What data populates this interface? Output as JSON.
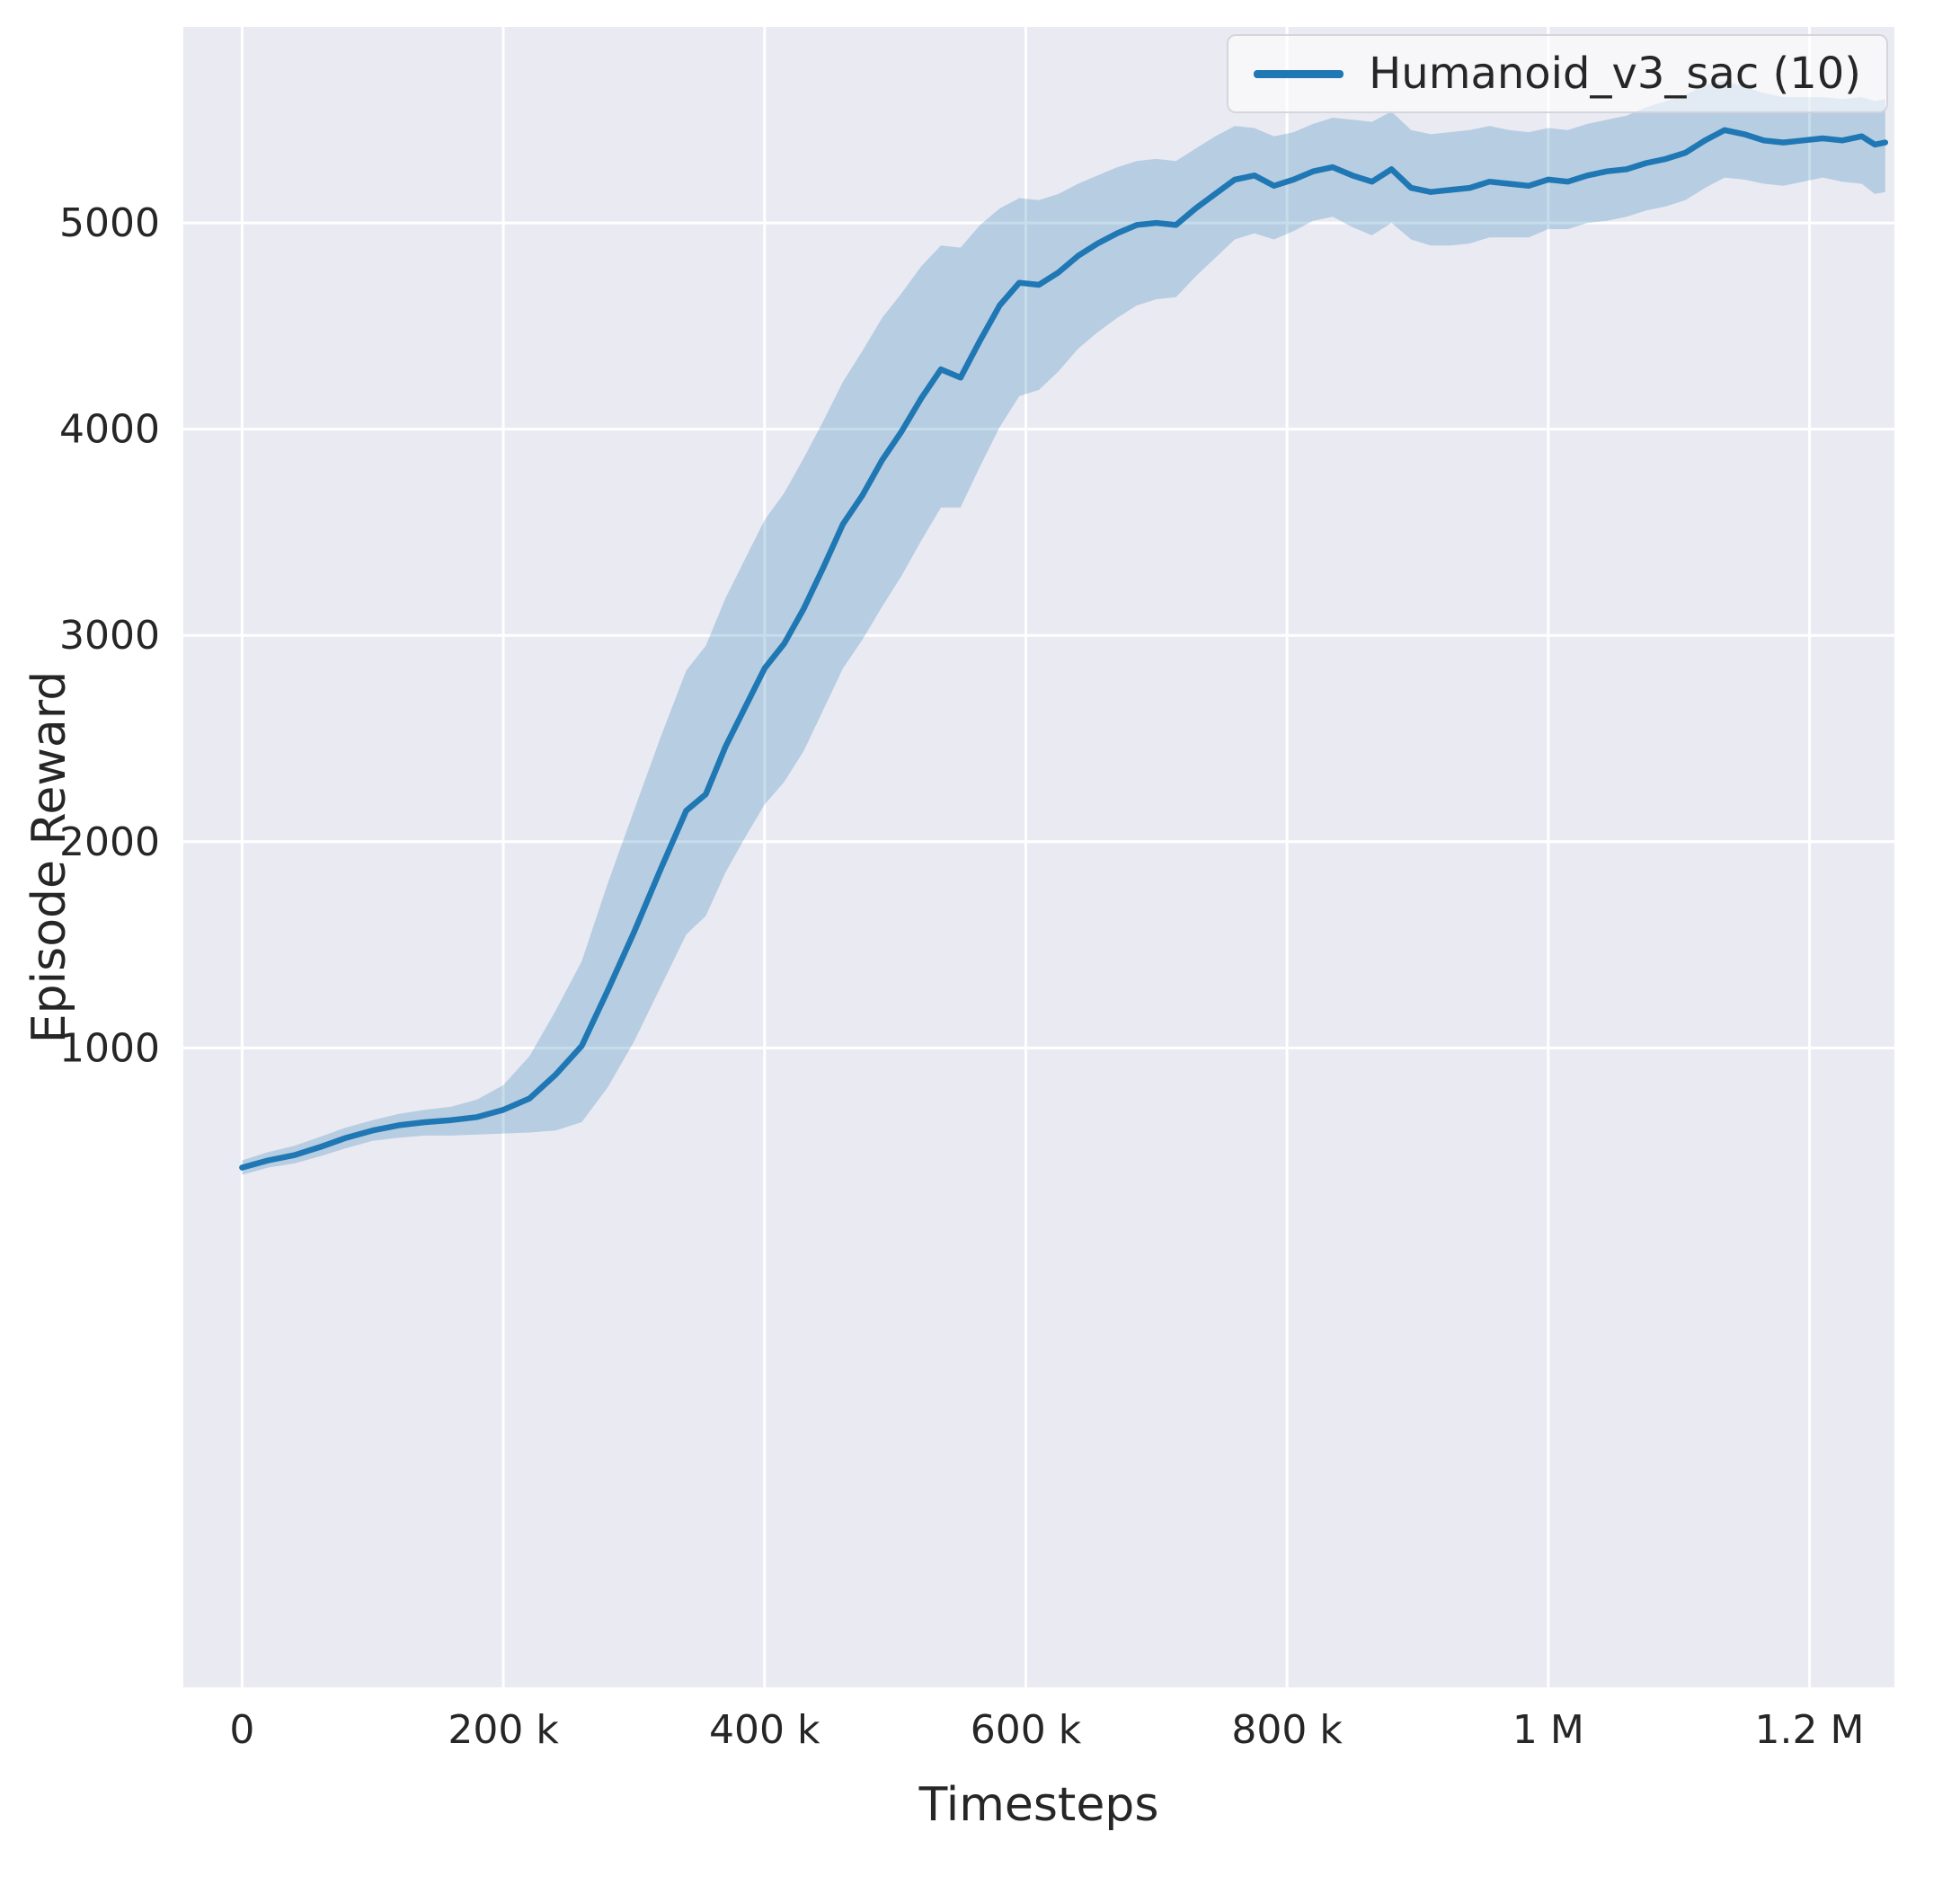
{
  "chart_data": {
    "type": "line",
    "title": "",
    "xlabel": "Timesteps",
    "ylabel": "Episode Reward",
    "grid": true,
    "legend_position": "upper right",
    "legend": [
      {
        "label": "Humanoid_v3_sac (10)",
        "color": "#1f77b4"
      }
    ],
    "xlim": [
      -45000,
      1265000
    ],
    "ylim": [
      -2100,
      5950
    ],
    "xticks": {
      "values": [
        0,
        200000,
        400000,
        600000,
        800000,
        1000000,
        1200000
      ],
      "labels": [
        "0",
        "200 k",
        "400 k",
        "600 k",
        "800 k",
        "1 M",
        "1.2 M"
      ]
    },
    "yticks": {
      "values": [
        1000,
        2000,
        3000,
        4000,
        5000
      ],
      "labels": [
        "1000",
        "2000",
        "3000",
        "4000",
        "5000"
      ]
    },
    "colors": {
      "line": "#1f77b4",
      "band": "#1f77b4",
      "band_opacity": 0.25,
      "plot_bg": "#eaeaf2",
      "grid": "#ffffff",
      "text": "#262626",
      "fig_bg": "#ffffff"
    },
    "series": [
      {
        "name": "Humanoid_v3_sac (10)",
        "x": [
          0,
          20000,
          40000,
          60000,
          80000,
          100000,
          120000,
          140000,
          160000,
          180000,
          200000,
          220000,
          240000,
          260000,
          280000,
          300000,
          320000,
          340000,
          355000,
          370000,
          385000,
          400000,
          415000,
          430000,
          445000,
          460000,
          475000,
          490000,
          505000,
          520000,
          535000,
          550000,
          565000,
          580000,
          595000,
          610000,
          625000,
          640000,
          655000,
          670000,
          685000,
          700000,
          715000,
          730000,
          745000,
          760000,
          775000,
          790000,
          805000,
          820000,
          835000,
          850000,
          865000,
          880000,
          895000,
          910000,
          925000,
          940000,
          955000,
          970000,
          985000,
          1000000,
          1015000,
          1030000,
          1045000,
          1060000,
          1075000,
          1090000,
          1105000,
          1120000,
          1135000,
          1150000,
          1165000,
          1180000,
          1195000,
          1210000,
          1225000,
          1240000,
          1250000,
          1258000
        ],
        "mean": [
          420,
          455,
          480,
          520,
          565,
          600,
          625,
          640,
          650,
          665,
          700,
          755,
          870,
          1010,
          1280,
          1560,
          1860,
          2150,
          2230,
          2460,
          2650,
          2840,
          2960,
          3130,
          3330,
          3540,
          3680,
          3850,
          3990,
          4150,
          4290,
          4250,
          4430,
          4600,
          4710,
          4700,
          4760,
          4840,
          4900,
          4950,
          4990,
          5000,
          4990,
          5070,
          5140,
          5210,
          5230,
          5180,
          5210,
          5250,
          5270,
          5230,
          5200,
          5260,
          5170,
          5150,
          5160,
          5170,
          5200,
          5190,
          5180,
          5210,
          5200,
          5230,
          5250,
          5260,
          5290,
          5310,
          5340,
          5400,
          5450,
          5430,
          5400,
          5390,
          5400,
          5410,
          5400,
          5420,
          5380,
          5390
        ],
        "lower": [
          385,
          420,
          440,
          475,
          515,
          550,
          565,
          575,
          575,
          580,
          585,
          590,
          600,
          640,
          810,
          1030,
          1290,
          1550,
          1640,
          1850,
          2020,
          2180,
          2290,
          2440,
          2640,
          2840,
          2980,
          3140,
          3290,
          3460,
          3620,
          3620,
          3820,
          4010,
          4160,
          4190,
          4280,
          4390,
          4470,
          4540,
          4600,
          4630,
          4640,
          4740,
          4830,
          4920,
          4950,
          4920,
          4960,
          5010,
          5030,
          4980,
          4940,
          5000,
          4920,
          4890,
          4890,
          4900,
          4930,
          4930,
          4930,
          4970,
          4970,
          5000,
          5010,
          5030,
          5060,
          5080,
          5110,
          5170,
          5220,
          5210,
          5190,
          5180,
          5200,
          5220,
          5200,
          5190,
          5140,
          5150
        ],
        "upper": [
          455,
          495,
          525,
          570,
          615,
          650,
          680,
          700,
          715,
          750,
          820,
          960,
          1180,
          1420,
          1800,
          2150,
          2500,
          2830,
          2950,
          3180,
          3370,
          3560,
          3690,
          3860,
          4040,
          4230,
          4380,
          4540,
          4660,
          4790,
          4890,
          4880,
          4990,
          5070,
          5120,
          5110,
          5140,
          5190,
          5230,
          5270,
          5300,
          5310,
          5300,
          5360,
          5420,
          5470,
          5460,
          5420,
          5440,
          5480,
          5510,
          5500,
          5490,
          5540,
          5450,
          5430,
          5440,
          5450,
          5470,
          5450,
          5440,
          5460,
          5450,
          5480,
          5500,
          5520,
          5560,
          5590,
          5620,
          5670,
          5690,
          5660,
          5630,
          5610,
          5610,
          5610,
          5600,
          5610,
          5590,
          5600
        ]
      }
    ]
  }
}
